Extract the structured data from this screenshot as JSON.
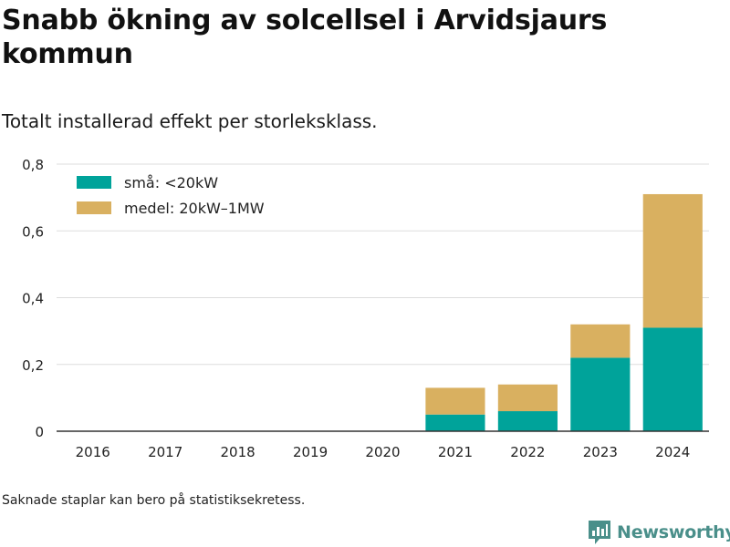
{
  "title": "Snabb ökning av solcellsel i Arvidsjaurs kommun",
  "subtitle": "Totalt installerad effekt per storleksklass.",
  "footnote": "Saknade staplar kan bero på statistiksekretess.",
  "brand": "Newsworthy",
  "chart_data": {
    "type": "bar",
    "stacked": true,
    "categories": [
      "2016",
      "2017",
      "2018",
      "2019",
      "2020",
      "2021",
      "2022",
      "2023",
      "2024"
    ],
    "series": [
      {
        "name": "små: <20kW",
        "color": "#00a39a",
        "values": [
          0,
          0,
          0,
          0,
          0,
          0.05,
          0.06,
          0.22,
          0.31
        ]
      },
      {
        "name": "medel: 20kW–1MW",
        "color": "#d9b060",
        "values": [
          0,
          0,
          0,
          0,
          0,
          0.08,
          0.08,
          0.1,
          0.4
        ]
      }
    ],
    "ylim": [
      0,
      0.8
    ],
    "yticks": [
      "0",
      "0,2",
      "0,4",
      "0,6",
      "0,8"
    ],
    "ytick_values": [
      0,
      0.2,
      0.4,
      0.6,
      0.8
    ],
    "grid": true,
    "legend": "top-left"
  }
}
